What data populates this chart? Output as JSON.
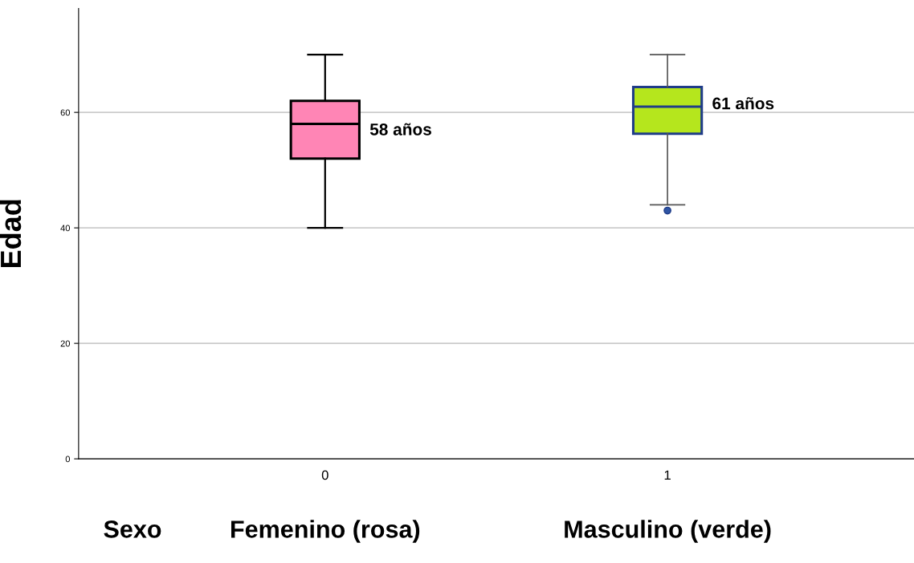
{
  "chart_data": {
    "type": "box",
    "categories": [
      "0",
      "1"
    ],
    "xlabel": "Sexo",
    "ylabel": "Edad",
    "boxes": [
      {
        "low": 40,
        "q1": 52,
        "median": 58,
        "q3": 62,
        "high": 70
      },
      {
        "low": 44,
        "q1": 56.3,
        "median": 61,
        "q3": 64.4,
        "high": 70,
        "outliers": [
          43
        ]
      }
    ],
    "colors": [
      "#ff85b5",
      "#b5e61d"
    ],
    "ylim": [
      0,
      78
    ],
    "yticks": [
      0,
      20,
      40,
      60
    ],
    "grid": "y",
    "annotations": [
      "58 años",
      "61 años",
      "Femenino (rosa)",
      "Masculino (verde)"
    ]
  }
}
